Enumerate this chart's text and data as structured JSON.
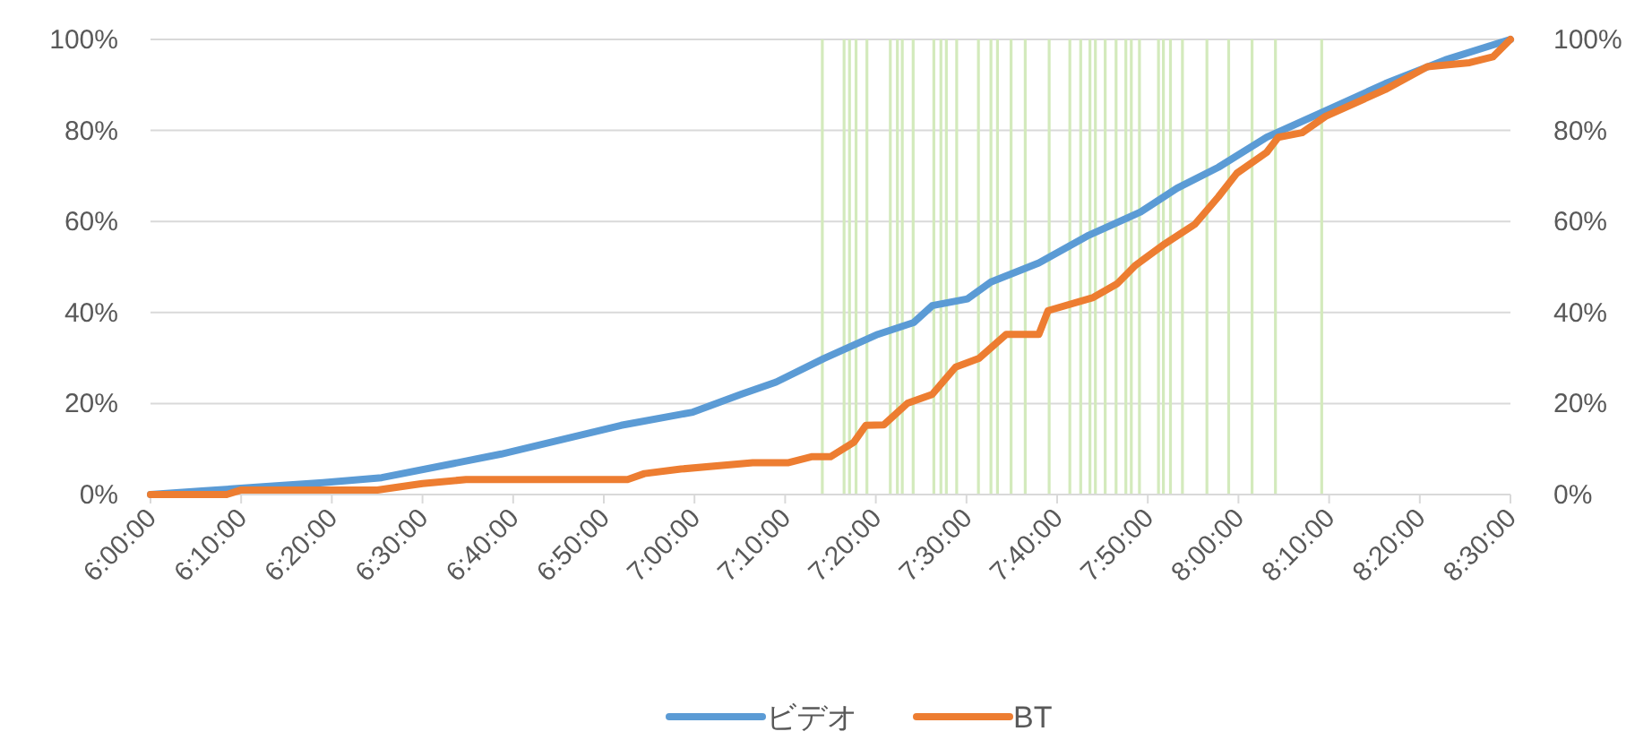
{
  "chart_data": {
    "type": "line",
    "xlim": [
      6,
      8.5
    ],
    "xticks": [
      {
        "value": 6,
        "label": "6:00:00"
      },
      {
        "value": 6.166667,
        "label": "6:10:00"
      },
      {
        "value": 6.333333,
        "label": "6:20:00"
      },
      {
        "value": 6.5,
        "label": "6:30:00"
      },
      {
        "value": 6.666667,
        "label": "6:40:00"
      },
      {
        "value": 6.833333,
        "label": "6:50:00"
      },
      {
        "value": 7,
        "label": "7:00:00"
      },
      {
        "value": 7.166667,
        "label": "7:10:00"
      },
      {
        "value": 7.333333,
        "label": "7:20:00"
      },
      {
        "value": 7.5,
        "label": "7:30:00"
      },
      {
        "value": 7.666667,
        "label": "7:40:00"
      },
      {
        "value": 7.833333,
        "label": "7:50:00"
      },
      {
        "value": 8,
        "label": "8:00:00"
      },
      {
        "value": 8.166667,
        "label": "8:10:00"
      },
      {
        "value": 8.333333,
        "label": "8:20:00"
      },
      {
        "value": 8.5,
        "label": "8:30:00"
      }
    ],
    "ylim": [
      0,
      100
    ],
    "yticks": [
      {
        "value": 0,
        "label": "0%"
      },
      {
        "value": 20,
        "label": "20%"
      },
      {
        "value": 40,
        "label": "40%"
      },
      {
        "value": 60,
        "label": "60%"
      },
      {
        "value": 80,
        "label": "80%"
      },
      {
        "value": 100,
        "label": "100%"
      }
    ],
    "y2lim": [
      0,
      100
    ],
    "y2ticks": [
      {
        "value": 0,
        "label": "0%"
      },
      {
        "value": 20,
        "label": "20%"
      },
      {
        "value": 40,
        "label": "40%"
      },
      {
        "value": 60,
        "label": "60%"
      },
      {
        "value": 80,
        "label": "80%"
      },
      {
        "value": 100,
        "label": "100%"
      }
    ],
    "grid": "y",
    "legend": "bottom",
    "ref_lines": [
      {
        "axis": "x",
        "value": 7.235,
        "color": "#d3eabc"
      },
      {
        "axis": "x",
        "value": 7.275,
        "color": "#d3eabc"
      },
      {
        "axis": "x",
        "value": 7.285,
        "color": "#d3eabc"
      },
      {
        "axis": "x",
        "value": 7.297,
        "color": "#d3eabc"
      },
      {
        "axis": "x",
        "value": 7.317,
        "color": "#d3eabc"
      },
      {
        "axis": "x",
        "value": 7.36,
        "color": "#d3eabc"
      },
      {
        "axis": "x",
        "value": 7.373,
        "color": "#d3eabc"
      },
      {
        "axis": "x",
        "value": 7.382,
        "color": "#d3eabc"
      },
      {
        "axis": "x",
        "value": 7.402,
        "color": "#d3eabc"
      },
      {
        "axis": "x",
        "value": 7.44,
        "color": "#d3eabc"
      },
      {
        "axis": "x",
        "value": 7.453,
        "color": "#d3eabc"
      },
      {
        "axis": "x",
        "value": 7.463,
        "color": "#d3eabc"
      },
      {
        "axis": "x",
        "value": 7.482,
        "color": "#d3eabc"
      },
      {
        "axis": "x",
        "value": 7.522,
        "color": "#d3eabc"
      },
      {
        "axis": "x",
        "value": 7.545,
        "color": "#d3eabc"
      },
      {
        "axis": "x",
        "value": 7.557,
        "color": "#d3eabc"
      },
      {
        "axis": "x",
        "value": 7.582,
        "color": "#d3eabc"
      },
      {
        "axis": "x",
        "value": 7.608,
        "color": "#d3eabc"
      },
      {
        "axis": "x",
        "value": 7.652,
        "color": "#d3eabc"
      },
      {
        "axis": "x",
        "value": 7.69,
        "color": "#d3eabc"
      },
      {
        "axis": "x",
        "value": 7.71,
        "color": "#d3eabc"
      },
      {
        "axis": "x",
        "value": 7.727,
        "color": "#d3eabc"
      },
      {
        "axis": "x",
        "value": 7.737,
        "color": "#d3eabc"
      },
      {
        "axis": "x",
        "value": 7.755,
        "color": "#d3eabc"
      },
      {
        "axis": "x",
        "value": 7.775,
        "color": "#d3eabc"
      },
      {
        "axis": "x",
        "value": 7.793,
        "color": "#d3eabc"
      },
      {
        "axis": "x",
        "value": 7.803,
        "color": "#d3eabc"
      },
      {
        "axis": "x",
        "value": 7.818,
        "color": "#d3eabc"
      },
      {
        "axis": "x",
        "value": 7.853,
        "color": "#d3eabc"
      },
      {
        "axis": "x",
        "value": 7.862,
        "color": "#d3eabc"
      },
      {
        "axis": "x",
        "value": 7.875,
        "color": "#d3eabc"
      },
      {
        "axis": "x",
        "value": 7.897,
        "color": "#d3eabc"
      },
      {
        "axis": "x",
        "value": 7.942,
        "color": "#d3eabc"
      },
      {
        "axis": "x",
        "value": 7.982,
        "color": "#d3eabc"
      },
      {
        "axis": "x",
        "value": 8.025,
        "color": "#d3eabc"
      },
      {
        "axis": "x",
        "value": 8.068,
        "color": "#d3eabc"
      },
      {
        "axis": "x",
        "value": 8.153,
        "color": "#d3eabc"
      }
    ],
    "series": [
      {
        "name": "ビデオ",
        "color": "#5b9bd5",
        "x": [
          6,
          6.095,
          6.207,
          6.317,
          6.425,
          6.645,
          6.865,
          6.997,
          7.085,
          7.15,
          7.238,
          7.337,
          7.403,
          7.437,
          7.502,
          7.545,
          7.633,
          7.722,
          7.82,
          7.887,
          7.963,
          8.052,
          8.16,
          8.27,
          8.38,
          8.5
        ],
        "values": [
          0,
          0.8,
          1.7,
          2.6,
          3.7,
          8.9,
          15.2,
          18.1,
          22,
          24.7,
          29.9,
          35.2,
          37.8,
          41.5,
          43,
          46.7,
          50.9,
          56.8,
          62.1,
          67.3,
          71.9,
          78.5,
          84.3,
          90.3,
          95.5,
          100
        ]
      },
      {
        "name": "BT",
        "color": "#ed7d31",
        "x": [
          6,
          6.14,
          6.167,
          6.417,
          6.5,
          6.58,
          6.877,
          6.908,
          6.975,
          7.107,
          7.173,
          7.215,
          7.25,
          7.293,
          7.315,
          7.348,
          7.392,
          7.437,
          7.48,
          7.523,
          7.573,
          7.633,
          7.65,
          7.733,
          7.777,
          7.81,
          7.865,
          7.92,
          7.963,
          7.997,
          8.052,
          8.073,
          8.117,
          8.16,
          8.27,
          8.347,
          8.425,
          8.468,
          8.5
        ],
        "values": [
          0,
          0,
          1,
          1,
          2.4,
          3.3,
          3.3,
          4.6,
          5.6,
          7,
          7,
          8.3,
          8.3,
          11.5,
          15.2,
          15.3,
          20.1,
          22,
          28,
          29.9,
          35.2,
          35.2,
          40.4,
          43.3,
          46.3,
          50.3,
          55.1,
          59.4,
          65.4,
          70.6,
          75.2,
          78.5,
          79.5,
          83.1,
          89,
          94,
          94.9,
          96.2,
          100
        ]
      }
    ]
  }
}
